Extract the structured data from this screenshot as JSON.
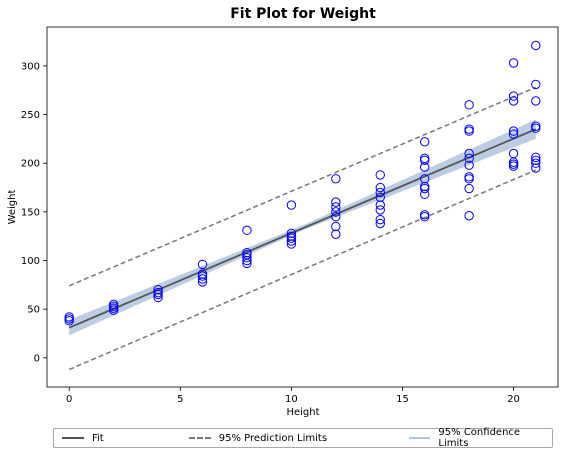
{
  "chart_data": {
    "type": "scatter",
    "title": "Fit Plot for Weight",
    "xlabel": "Height",
    "ylabel": "Weight",
    "xlim": [
      -1,
      22
    ],
    "ylim": [
      -30,
      340
    ],
    "x_ticks": [
      0,
      5,
      10,
      15,
      20
    ],
    "y_ticks": [
      0,
      50,
      100,
      150,
      200,
      250,
      300
    ],
    "grid": false,
    "legend_placement": "bottom",
    "points": [
      [
        0,
        38
      ],
      [
        0,
        40
      ],
      [
        0,
        42
      ],
      [
        2,
        49
      ],
      [
        2,
        51
      ],
      [
        2,
        53
      ],
      [
        2,
        55
      ],
      [
        4,
        62
      ],
      [
        4,
        65
      ],
      [
        4,
        67
      ],
      [
        4,
        70
      ],
      [
        6,
        78
      ],
      [
        6,
        81
      ],
      [
        6,
        84
      ],
      [
        6,
        86
      ],
      [
        6,
        96
      ],
      [
        8,
        97
      ],
      [
        8,
        100
      ],
      [
        8,
        103
      ],
      [
        8,
        106
      ],
      [
        8,
        108
      ],
      [
        8,
        131
      ],
      [
        10,
        117
      ],
      [
        10,
        120
      ],
      [
        10,
        123
      ],
      [
        10,
        125
      ],
      [
        10,
        128
      ],
      [
        10,
        157
      ],
      [
        12,
        127
      ],
      [
        12,
        135
      ],
      [
        12,
        145
      ],
      [
        12,
        150
      ],
      [
        12,
        155
      ],
      [
        12,
        160
      ],
      [
        12,
        184
      ],
      [
        14,
        138
      ],
      [
        14,
        142
      ],
      [
        14,
        152
      ],
      [
        14,
        157
      ],
      [
        14,
        165
      ],
      [
        14,
        170
      ],
      [
        14,
        175
      ],
      [
        14,
        188
      ],
      [
        16,
        145
      ],
      [
        16,
        147
      ],
      [
        16,
        168
      ],
      [
        16,
        174
      ],
      [
        16,
        176
      ],
      [
        16,
        184
      ],
      [
        16,
        196
      ],
      [
        16,
        203
      ],
      [
        16,
        205
      ],
      [
        16,
        222
      ],
      [
        18,
        146
      ],
      [
        18,
        174
      ],
      [
        18,
        184
      ],
      [
        18,
        186
      ],
      [
        18,
        198
      ],
      [
        18,
        205
      ],
      [
        18,
        210
      ],
      [
        18,
        233
      ],
      [
        18,
        235
      ],
      [
        18,
        260
      ],
      [
        20,
        197
      ],
      [
        20,
        199
      ],
      [
        20,
        201
      ],
      [
        20,
        210
      ],
      [
        20,
        230
      ],
      [
        20,
        233
      ],
      [
        20,
        264
      ],
      [
        20,
        269
      ],
      [
        20,
        303
      ],
      [
        21,
        195
      ],
      [
        21,
        200
      ],
      [
        21,
        203
      ],
      [
        21,
        206
      ],
      [
        21,
        236
      ],
      [
        21,
        238
      ],
      [
        21,
        264
      ],
      [
        21,
        281
      ],
      [
        21,
        321
      ]
    ],
    "fit": {
      "x": [
        0,
        21
      ],
      "y": [
        31,
        235
      ]
    },
    "prediction_limits": {
      "lower": {
        "x": [
          0,
          21
        ],
        "y": [
          -12,
          193
        ]
      },
      "upper": {
        "x": [
          0,
          21
        ],
        "y": [
          74,
          278
        ]
      }
    },
    "confidence_limits": {
      "x": [
        0,
        10.5,
        21
      ],
      "lower": [
        23,
        131,
        225
      ],
      "upper": [
        39,
        136,
        245
      ]
    },
    "colors": {
      "points": "#0000ff",
      "fit": "#555555",
      "prediction": "#777777",
      "confidence": "#b0c4de"
    },
    "legend": {
      "fit_label": "Fit",
      "prediction_label": "95% Prediction Limits",
      "confidence_label": "95% Confidence Limits"
    }
  }
}
